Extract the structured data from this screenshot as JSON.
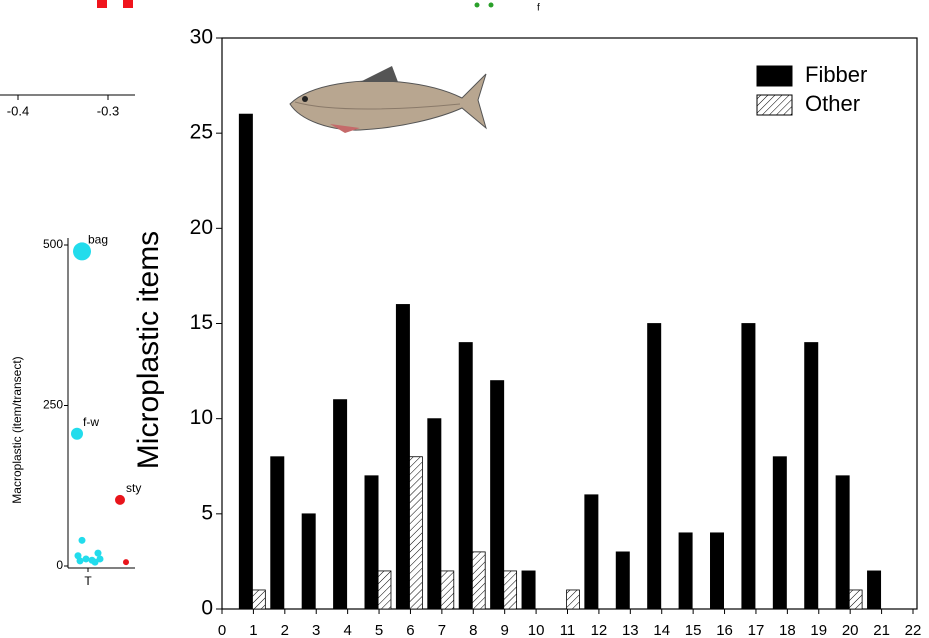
{
  "chart_data": [
    {
      "type": "bar",
      "ylabel": "Microplastic items",
      "x": [
        1,
        2,
        3,
        4,
        5,
        6,
        7,
        8,
        9,
        10,
        11,
        12,
        13,
        14,
        15,
        16,
        17,
        18,
        19,
        20,
        21
      ],
      "series": [
        {
          "name": "Fibber",
          "color": "#000000",
          "values": [
            26,
            8,
            5,
            11,
            7,
            16,
            10,
            14,
            12,
            2,
            0,
            6,
            3,
            15,
            4,
            4,
            15,
            8,
            14,
            7,
            2
          ]
        },
        {
          "name": "Other",
          "color": "#ffffff",
          "hatch": true,
          "values": [
            1,
            0,
            0,
            0,
            2,
            8,
            2,
            3,
            2,
            0,
            1,
            0,
            0,
            0,
            0,
            0,
            0,
            0,
            0,
            1,
            0
          ]
        }
      ],
      "xlim": [
        0,
        22
      ],
      "xticks": [
        0,
        1,
        2,
        3,
        4,
        5,
        6,
        7,
        8,
        9,
        10,
        11,
        12,
        13,
        14,
        15,
        16,
        17,
        18,
        19,
        20,
        21,
        22
      ],
      "ylim": [
        0,
        30
      ],
      "yticks": [
        0,
        5,
        10,
        15,
        20,
        25,
        30
      ],
      "legend": "top-right"
    },
    {
      "type": "scatter",
      "ylabel": "Macroplastic (item/transect)",
      "categories": [
        "T"
      ],
      "ylim": [
        0,
        500
      ],
      "yticks": [
        0,
        250,
        500
      ],
      "points": [
        {
          "label": "bag",
          "value": 490,
          "color": "#22dcec"
        },
        {
          "label": "f-w",
          "value": 206,
          "color": "#22dcec"
        },
        {
          "label": "sty",
          "value": 103,
          "color": "#e8141b"
        },
        {
          "label": null,
          "value": 40,
          "color": "#22dcec"
        },
        {
          "label": null,
          "value": 16,
          "color": "#22dcec"
        },
        {
          "label": null,
          "value": 11,
          "color": "#22dcec"
        },
        {
          "label": null,
          "value": 9,
          "color": "#22dcec"
        },
        {
          "label": null,
          "value": 20,
          "color": "#22dcec"
        },
        {
          "label": null,
          "value": 11,
          "color": "#22dcec"
        },
        {
          "label": null,
          "value": 8,
          "color": "#22dcec"
        },
        {
          "label": null,
          "value": 6,
          "color": "#22dcec"
        },
        {
          "label": null,
          "value": 6,
          "color": "#e8141b"
        }
      ]
    },
    {
      "type": "scatter",
      "xlim": [
        -0.4,
        -0.3
      ],
      "xticks": [
        -0.4,
        -0.3
      ],
      "annotation": "f"
    }
  ]
}
